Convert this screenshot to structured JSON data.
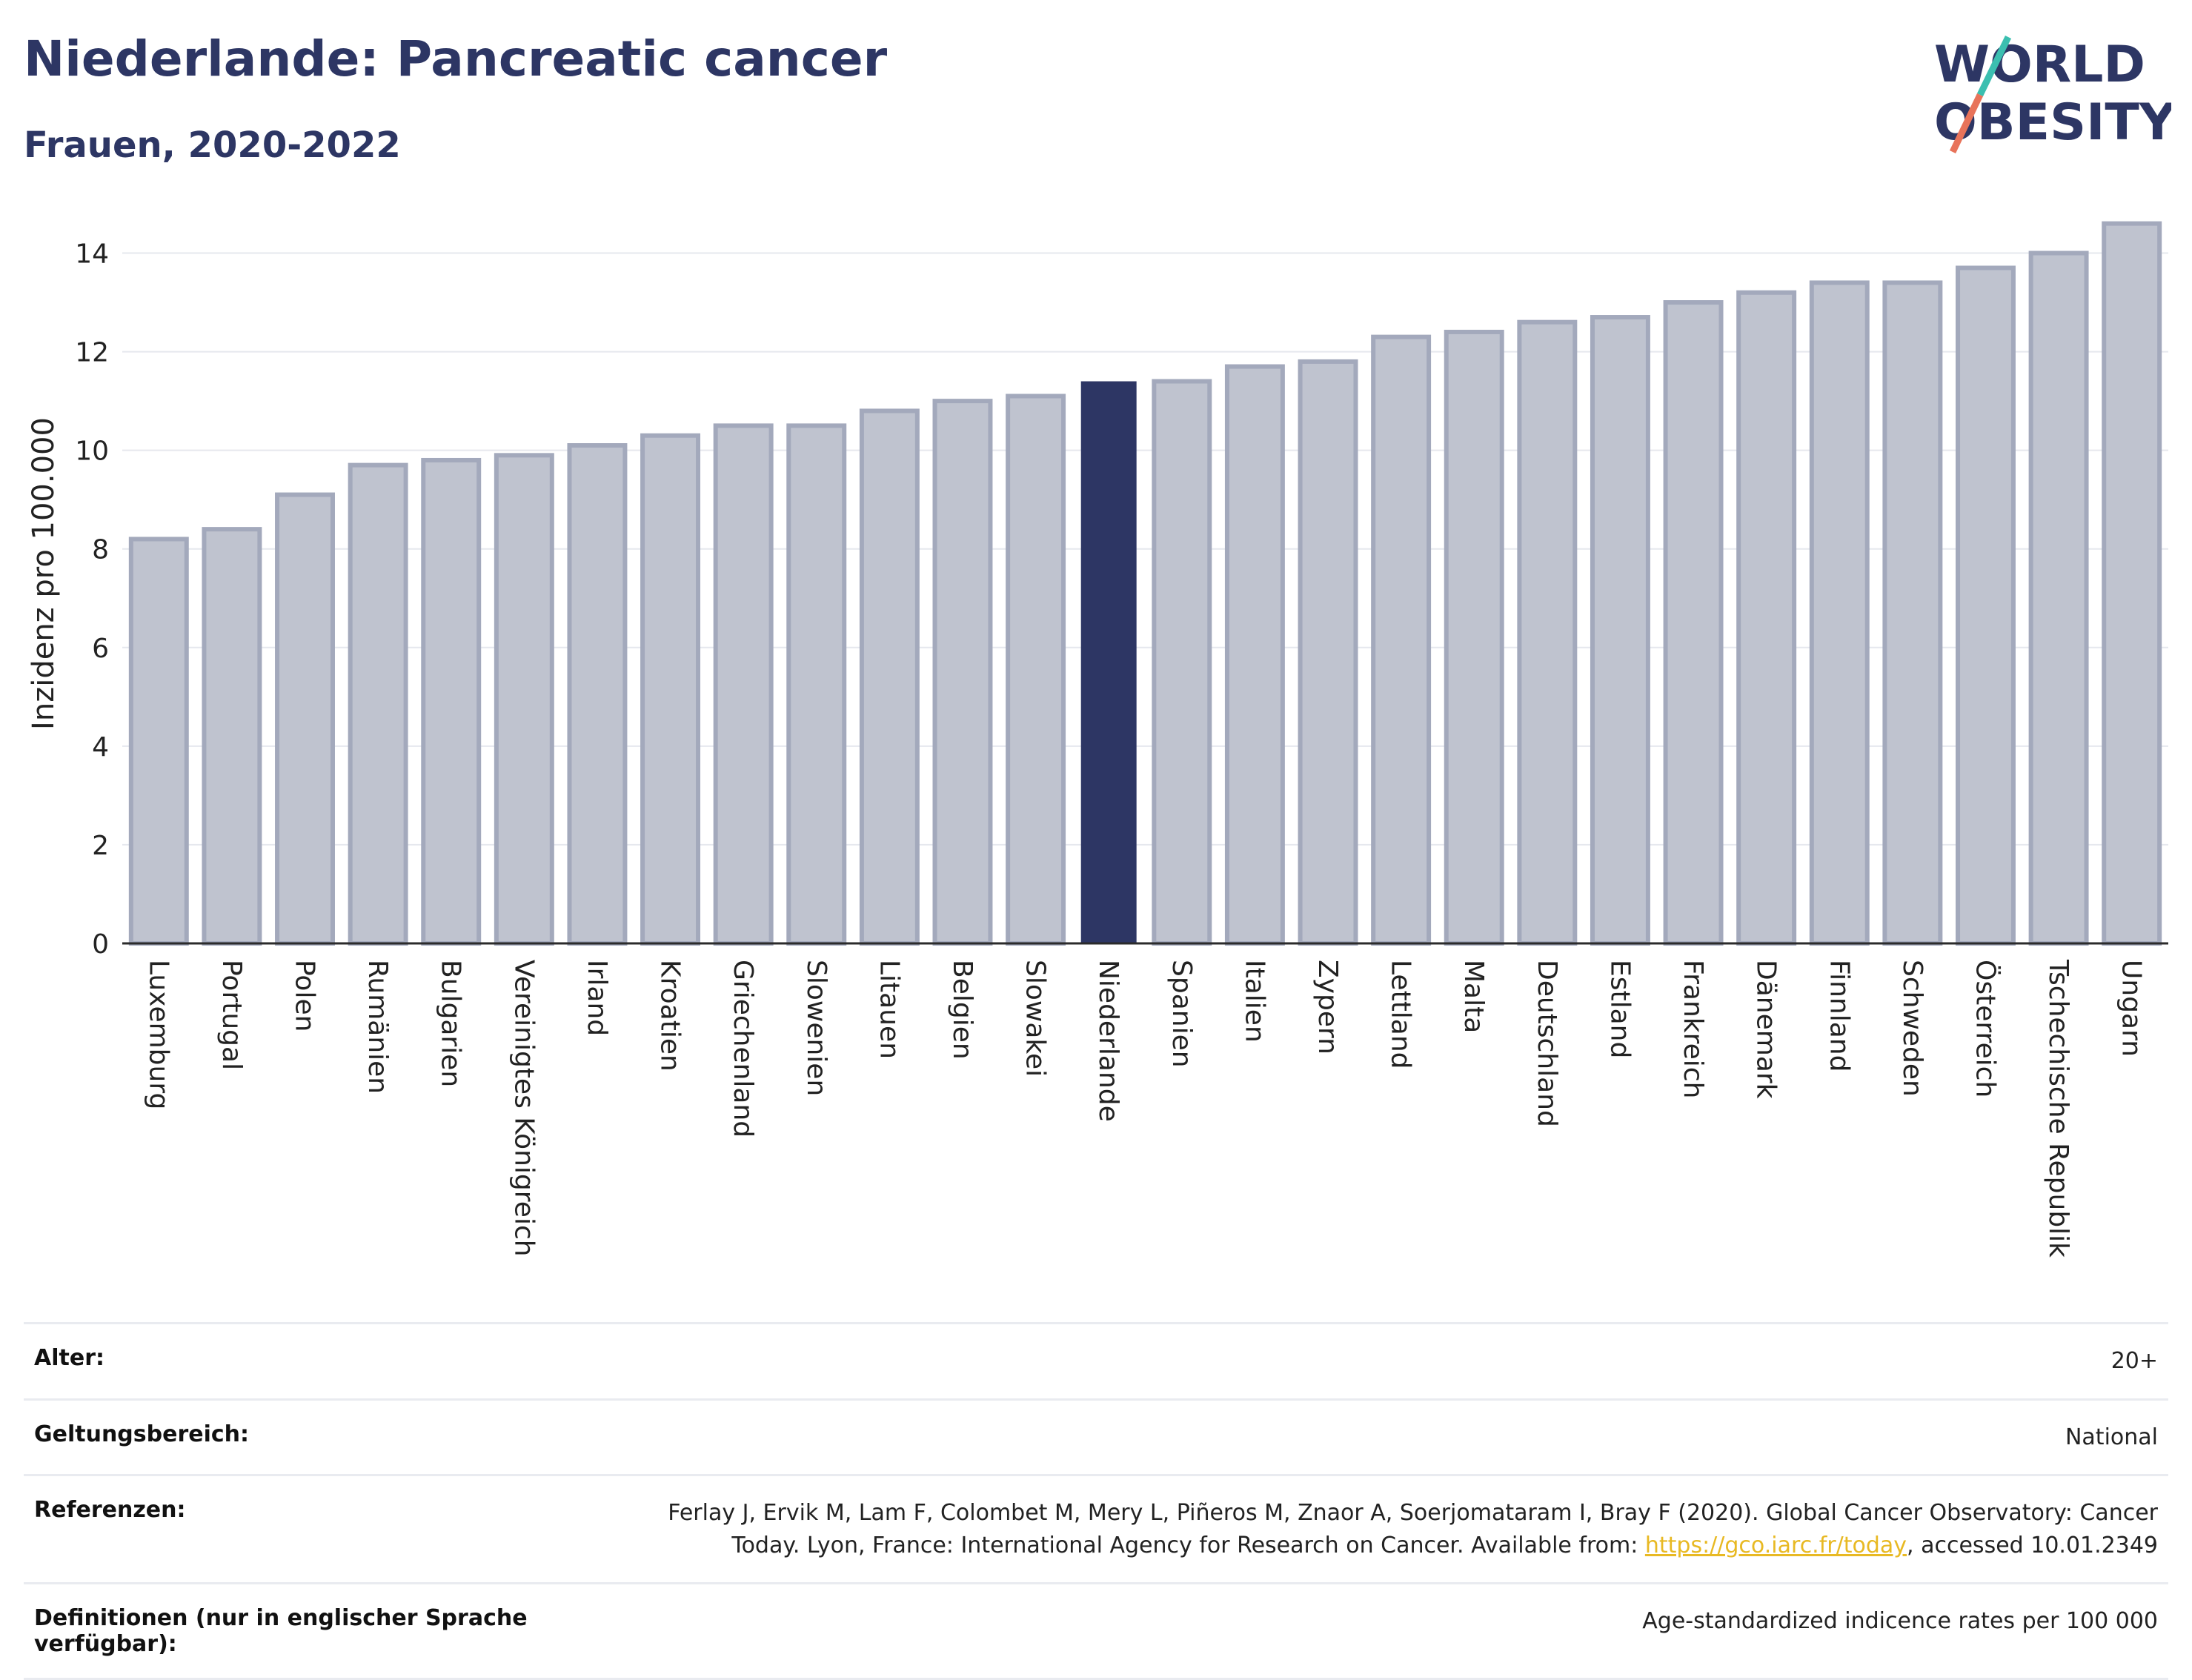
{
  "header": {
    "title": "Niederlande: Pancreatic cancer",
    "subtitle": "Frauen, 2020-2022"
  },
  "logo": {
    "line1": "WORLD",
    "line2": "OBESITY",
    "colors": {
      "text": "#2d3664",
      "slash_top": "#3bbfb0",
      "slash_bottom": "#e8735a"
    }
  },
  "chart_data": {
    "type": "bar",
    "ylabel": "Inzidenz pro 100.000",
    "xlabel": "",
    "ylim": [
      0,
      15
    ],
    "yticks": [
      0,
      2,
      4,
      6,
      8,
      10,
      12,
      14
    ],
    "grid": true,
    "highlight": "Niederlande",
    "colors": {
      "bar": "#bfc3cf",
      "bar_edge": "#a3a9bc",
      "highlight": "#2d3664",
      "grid": "#e6e8ee"
    },
    "categories": [
      "Luxemburg",
      "Portugal",
      "Polen",
      "Rumänien",
      "Bulgarien",
      "Vereinigtes Königreich",
      "Irland",
      "Kroatien",
      "Griechenland",
      "Slowenien",
      "Litauen",
      "Belgien",
      "Slowakei",
      "Niederlande",
      "Spanien",
      "Italien",
      "Zypern",
      "Lettland",
      "Malta",
      "Deutschland",
      "Estland",
      "Frankreich",
      "Dänemark",
      "Finnland",
      "Schweden",
      "Österreich",
      "Tschechische Republik",
      "Ungarn"
    ],
    "values": [
      8.2,
      8.4,
      9.1,
      9.7,
      9.8,
      9.9,
      10.1,
      10.3,
      10.5,
      10.5,
      10.8,
      11.0,
      11.1,
      11.4,
      11.4,
      11.7,
      11.8,
      12.3,
      12.4,
      12.6,
      12.7,
      13.0,
      13.2,
      13.4,
      13.4,
      13.7,
      14.0,
      14.6
    ]
  },
  "meta": {
    "age_label": "Alter:",
    "age_value": "20+",
    "scope_label": "Geltungsbereich:",
    "scope_value": "National",
    "refs_label": "Referenzen:",
    "refs_text_1": "Ferlay J, Ervik M, Lam F, Colombet M, Mery L, Piñeros M, Znaor A, Soerjomataram I, Bray F (2020). Global Cancer Observatory: Cancer",
    "refs_text_2": "Today. Lyon, France: International Agency for Research on Cancer. Available from: ",
    "refs_link": "https://gco.iarc.fr/today",
    "refs_text_3": ", accessed 10.01.2349",
    "defs_label": "Definitionen (nur in englischer Sprache verfügbar):",
    "defs_value": "Age-standardized indicence rates per 100 000"
  }
}
